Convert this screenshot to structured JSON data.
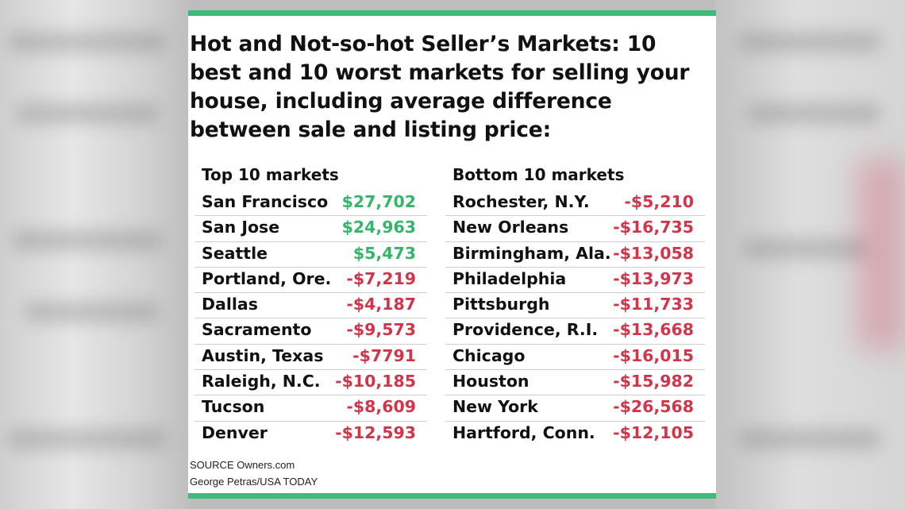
{
  "title": "Hot and Not-so-hot Seller’s Markets: 10 best and 10 worst markets for selling your house, including average difference between sale and listing price:",
  "colors": {
    "accent": "#3fba7a",
    "positive": "#34b56a",
    "negative": "#d2344a"
  },
  "top": {
    "heading": "Top 10 markets",
    "rows": [
      {
        "city": "San Francisco",
        "value": "$27,702",
        "sign": "pos"
      },
      {
        "city": "San Jose",
        "value": "$24,963",
        "sign": "pos"
      },
      {
        "city": "Seattle",
        "value": "$5,473",
        "sign": "pos"
      },
      {
        "city": "Portland, Ore.",
        "value": "-$7,219",
        "sign": "neg"
      },
      {
        "city": "Dallas",
        "value": "-$4,187",
        "sign": "neg"
      },
      {
        "city": "Sacramento",
        "value": "-$9,573",
        "sign": "neg"
      },
      {
        "city": "Austin, Texas",
        "value": "-$7791",
        "sign": "neg"
      },
      {
        "city": "Raleigh, N.C.",
        "value": "-$10,185",
        "sign": "neg"
      },
      {
        "city": "Tucson",
        "value": "-$8,609",
        "sign": "neg"
      },
      {
        "city": "Denver",
        "value": "-$12,593",
        "sign": "neg"
      }
    ]
  },
  "bottom": {
    "heading": "Bottom 10 markets",
    "rows": [
      {
        "city": "Rochester, N.Y.",
        "value": "-$5,210",
        "sign": "neg"
      },
      {
        "city": "New Orleans",
        "value": "-$16,735",
        "sign": "neg"
      },
      {
        "city": "Birmingham, Ala.",
        "value": "-$13,058",
        "sign": "neg"
      },
      {
        "city": "Philadelphia",
        "value": "-$13,973",
        "sign": "neg"
      },
      {
        "city": "Pittsburgh",
        "value": "-$11,733",
        "sign": "neg"
      },
      {
        "city": "Providence, R.I.",
        "value": "-$13,668",
        "sign": "neg"
      },
      {
        "city": "Chicago",
        "value": "-$16,015",
        "sign": "neg"
      },
      {
        "city": "Houston",
        "value": "-$15,982",
        "sign": "neg"
      },
      {
        "city": "New York",
        "value": "-$26,568",
        "sign": "neg"
      },
      {
        "city": "Hartford, Conn.",
        "value": "-$12,105",
        "sign": "neg"
      }
    ]
  },
  "source": {
    "line1": "SOURCE Owners.com",
    "line2": "George Petras/USA TODAY"
  }
}
